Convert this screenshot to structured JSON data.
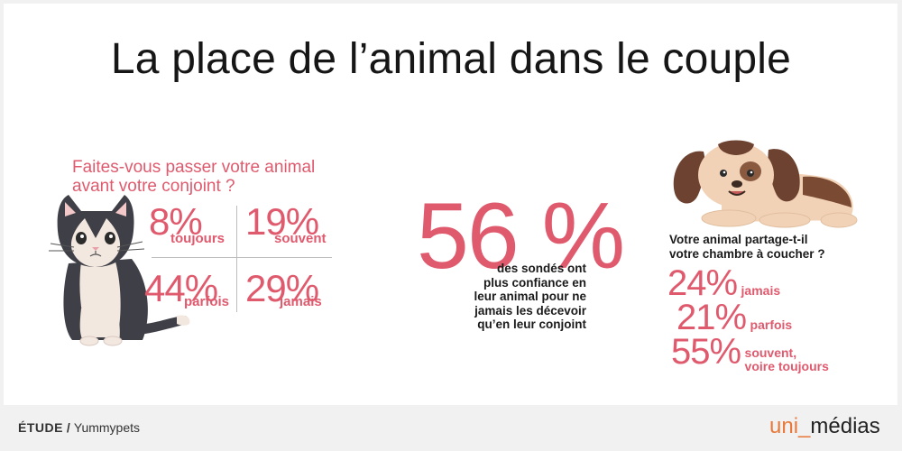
{
  "title": "La place de l’animal dans le couple",
  "question1": {
    "line1": "Faites-vous passer votre animal",
    "line2": "avant votre conjoint ?",
    "stats": [
      {
        "value": "8",
        "unit": "%",
        "label": "toujours"
      },
      {
        "value": "19",
        "unit": "%",
        "label": "souvent"
      },
      {
        "value": "44",
        "unit": "%",
        "label": "parfois"
      },
      {
        "value": "29",
        "unit": "%",
        "label": "jamais"
      }
    ]
  },
  "center": {
    "value": "56 %",
    "lines": [
      "des sondés ont",
      "plus confiance en",
      "leur animal pour ne",
      "jamais les décevoir",
      "qu’en leur conjoint"
    ]
  },
  "question2": {
    "line1": "Votre animal partage-t-il",
    "line2": "votre chambre à coucher ?",
    "stats": [
      {
        "value": "24",
        "unit": "%",
        "label": "jamais",
        "label2": ""
      },
      {
        "value": "21",
        "unit": "%",
        "label": "parfois",
        "label2": ""
      },
      {
        "value": "55",
        "unit": "%",
        "label": "souvent,",
        "label2": "voire toujours"
      }
    ]
  },
  "footer": {
    "study_label": "ÉTUDE",
    "separator": "/",
    "source": "Yummypets",
    "brand_part1": "uni",
    "brand_part2": "médias"
  },
  "chart_data": [
    {
      "type": "table",
      "title": "Faites-vous passer votre animal avant votre conjoint ?",
      "categories": [
        "toujours",
        "souvent",
        "parfois",
        "jamais"
      ],
      "values": [
        8,
        19,
        44,
        29
      ]
    },
    {
      "type": "table",
      "title": "Votre animal partage-t-il votre chambre à coucher ?",
      "categories": [
        "jamais",
        "parfois",
        "souvent, voire toujours"
      ],
      "values": [
        24,
        21,
        55
      ]
    },
    {
      "type": "table",
      "categories": [
        "des sondés ont plus confiance en leur animal pour ne jamais les décevoir qu’en leur conjoint"
      ],
      "values": [
        56
      ]
    }
  ],
  "colors": {
    "accent": "#e05a6e",
    "brand": "#e9793a",
    "text": "#1b1b1b",
    "background": "#f1f1f1"
  },
  "icons": [
    "cat-illustration",
    "dog-illustration"
  ]
}
